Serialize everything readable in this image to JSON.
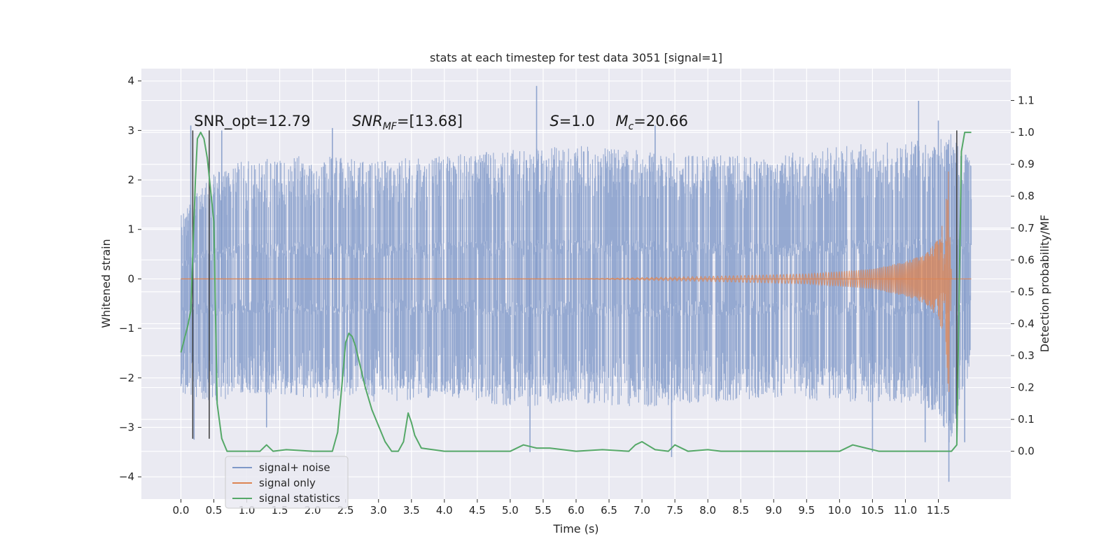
{
  "chart_data": {
    "type": "line",
    "title": "stats at each timestep for test data 3051 [signal=1]",
    "xlabel": "Time (s)",
    "ylabel": "Whitened strain",
    "y2label": "Detection probability/MF",
    "xlim": [
      -0.6,
      12.6
    ],
    "ylim": [
      -4.45,
      4.25
    ],
    "y2lim": [
      -0.15,
      1.2
    ],
    "x_ticks": [
      "0.0",
      "0.5",
      "1.0",
      "1.5",
      "2.0",
      "2.5",
      "3.0",
      "3.5",
      "4.0",
      "4.5",
      "5.0",
      "5.5",
      "6.0",
      "6.5",
      "7.0",
      "7.5",
      "8.0",
      "8.5",
      "9.0",
      "9.5",
      "10.0",
      "10.5",
      "11.0",
      "11.5"
    ],
    "y_ticks": [
      "4",
      "3",
      "2",
      "1",
      "0",
      "−1",
      "−2",
      "−3",
      "−4"
    ],
    "y2_ticks": [
      "1.1",
      "1.0",
      "0.9",
      "0.8",
      "0.7",
      "0.6",
      "0.5",
      "0.4",
      "0.3",
      "0.2",
      "0.1",
      "0.0"
    ],
    "grid": true,
    "legend_position": "lower-left",
    "annotations": [
      {
        "text": "SNR_opt=12.79",
        "x": 0.2,
        "y": 3.05
      },
      {
        "text": "SNR",
        "sub": "MF",
        "tail": "=[13.68]",
        "italic": true,
        "x": 2.6,
        "y": 3.05
      },
      {
        "text": "S",
        "tail": "=1.0",
        "italic": true,
        "x": 5.6,
        "y": 3.05
      },
      {
        "text": "M",
        "sub": "c",
        "tail": "=20.66",
        "italic": true,
        "x": 6.6,
        "y": 3.05
      }
    ],
    "vlines": [
      {
        "x": 0.18,
        "ymin": -3.23,
        "ymax": 3.0
      },
      {
        "x": 0.43,
        "ymin": -3.23,
        "ymax": 3.0
      },
      {
        "x": 11.78,
        "ymin": -3.23,
        "ymax": 3.0
      }
    ],
    "series": [
      {
        "name": "signal+ noise",
        "color": "#7f98c8",
        "x_range": [
          0.0,
          12.0
        ],
        "envelope": {
          "x": [
            0.0,
            0.5,
            1.0,
            2.0,
            3.0,
            4.0,
            5.0,
            6.0,
            7.0,
            8.0,
            9.0,
            10.0,
            11.0,
            11.5,
            11.66,
            11.8,
            12.0
          ],
          "upper": [
            1.3,
            2.2,
            2.4,
            2.5,
            2.4,
            2.5,
            2.6,
            2.7,
            2.6,
            2.5,
            2.5,
            2.7,
            2.8,
            2.9,
            3.0,
            2.7,
            2.4
          ],
          "lower": [
            -2.3,
            -2.5,
            -2.3,
            -2.4,
            -2.5,
            -2.4,
            -2.6,
            -2.5,
            -2.6,
            -2.5,
            -2.4,
            -2.5,
            -2.5,
            -2.7,
            -3.6,
            -2.6,
            -1.8
          ]
        },
        "spikes_up": [
          {
            "x": 0.15,
            "y": 3.1
          },
          {
            "x": 0.62,
            "y": 3.0
          },
          {
            "x": 2.3,
            "y": 3.05
          },
          {
            "x": 5.4,
            "y": 3.9
          },
          {
            "x": 7.2,
            "y": 3.1
          },
          {
            "x": 11.2,
            "y": 3.6
          },
          {
            "x": 11.5,
            "y": 3.2
          }
        ],
        "spikes_down": [
          {
            "x": 0.2,
            "y": -3.25
          },
          {
            "x": 1.3,
            "y": -3.0
          },
          {
            "x": 5.3,
            "y": -3.5
          },
          {
            "x": 7.45,
            "y": -3.6
          },
          {
            "x": 10.5,
            "y": -3.5
          },
          {
            "x": 11.3,
            "y": -3.3
          },
          {
            "x": 11.66,
            "y": -4.1
          },
          {
            "x": 11.9,
            "y": -3.3
          }
        ]
      },
      {
        "name": "signal only",
        "color": "#dd8452",
        "x_range": [
          0.0,
          11.7
        ],
        "amplitude": {
          "x": [
            0.0,
            6.0,
            8.0,
            9.5,
            10.5,
            11.0,
            11.3,
            11.5,
            11.6,
            11.66,
            11.7
          ],
          "y": [
            0.0,
            0.0,
            0.05,
            0.1,
            0.2,
            0.35,
            0.5,
            0.8,
            1.3,
            2.4,
            0.0
          ]
        }
      },
      {
        "name": "signal statistics",
        "color": "#55a868",
        "x": [
          0.0,
          0.1,
          0.15,
          0.22,
          0.25,
          0.3,
          0.35,
          0.4,
          0.45,
          0.5,
          0.55,
          0.62,
          0.7,
          1.0,
          1.2,
          1.3,
          1.4,
          1.6,
          2.0,
          2.3,
          2.38,
          2.45,
          2.5,
          2.55,
          2.6,
          2.65,
          2.8,
          2.9,
          3.0,
          3.1,
          3.2,
          3.3,
          3.38,
          3.45,
          3.5,
          3.55,
          3.65,
          4.0,
          5.0,
          5.2,
          5.4,
          5.6,
          6.0,
          6.4,
          6.8,
          6.9,
          7.0,
          7.2,
          7.4,
          7.5,
          7.7,
          8.0,
          8.2,
          10.0,
          10.2,
          10.4,
          10.6,
          11.0,
          11.5,
          11.7,
          11.78,
          11.85,
          11.9,
          12.0
        ],
        "y": [
          0.31,
          0.39,
          0.44,
          0.85,
          0.98,
          1.0,
          0.98,
          0.92,
          0.82,
          0.72,
          0.15,
          0.04,
          0.0,
          0.0,
          0.0,
          0.02,
          0.0,
          0.005,
          0.0,
          0.0,
          0.06,
          0.22,
          0.34,
          0.37,
          0.36,
          0.33,
          0.2,
          0.13,
          0.08,
          0.03,
          0.0,
          0.0,
          0.03,
          0.12,
          0.09,
          0.05,
          0.01,
          0.0,
          0.0,
          0.02,
          0.01,
          0.01,
          0.0,
          0.005,
          0.0,
          0.02,
          0.03,
          0.005,
          0.0,
          0.02,
          0.0,
          0.005,
          0.0,
          0.0,
          0.02,
          0.01,
          0.0,
          0.0,
          0.0,
          0.0,
          0.02,
          0.94,
          1.0,
          1.0
        ]
      }
    ]
  }
}
